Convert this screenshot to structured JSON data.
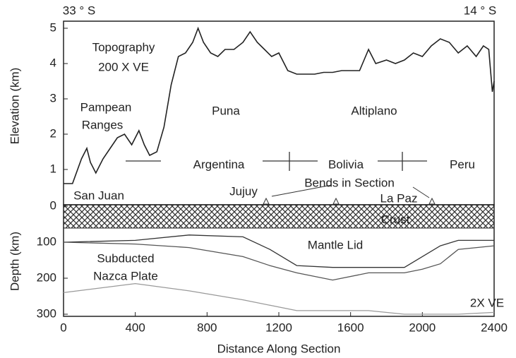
{
  "chart_data": [
    {
      "type": "line",
      "ylabel": "Elevation (km)",
      "xlim": [
        0,
        2400
      ],
      "ylim": [
        0,
        5.2
      ],
      "yticks": [
        1,
        2,
        3,
        4,
        5
      ],
      "annotations": [
        "33 ° S",
        "14 ° S",
        "Topography",
        "200 X VE",
        "Pampean",
        "Ranges",
        "Puna",
        "Altiplano",
        "Argentina",
        "Bolivia",
        "Peru",
        "San Juan",
        "Jujuy",
        "Bends in Section",
        "La Paz"
      ],
      "x": [
        0,
        50,
        100,
        130,
        150,
        180,
        220,
        260,
        300,
        340,
        380,
        420,
        450,
        480,
        520,
        560,
        600,
        640,
        680,
        720,
        750,
        780,
        820,
        860,
        900,
        950,
        1000,
        1040,
        1080,
        1120,
        1160,
        1200,
        1250,
        1300,
        1350,
        1400,
        1450,
        1500,
        1550,
        1600,
        1650,
        1700,
        1740,
        1800,
        1850,
        1900,
        1950,
        2000,
        2050,
        2100,
        2150,
        2200,
        2250,
        2300,
        2340,
        2370,
        2390,
        2400
      ],
      "series": [
        {
          "color": "#222222",
          "values": [
            0.6,
            0.6,
            1.3,
            1.6,
            1.2,
            0.9,
            1.3,
            1.6,
            1.9,
            2.0,
            1.7,
            2.1,
            1.7,
            1.4,
            1.5,
            2.2,
            3.4,
            4.2,
            4.3,
            4.6,
            5.0,
            4.6,
            4.3,
            4.2,
            4.4,
            4.4,
            4.6,
            4.9,
            4.6,
            4.4,
            4.2,
            4.3,
            3.8,
            3.7,
            3.7,
            3.7,
            3.75,
            3.75,
            3.8,
            3.8,
            3.8,
            4.4,
            4.0,
            4.1,
            4.0,
            4.1,
            4.3,
            4.2,
            4.5,
            4.7,
            4.6,
            4.3,
            4.5,
            4.2,
            4.5,
            4.4,
            3.2,
            3.5
          ]
        }
      ]
    },
    {
      "type": "line",
      "xlabel": "Distance Along Section",
      "ylabel": "Depth (km)",
      "xlim": [
        0,
        2400
      ],
      "xticks": [
        0,
        400,
        800,
        1200,
        1600,
        2000,
        2400
      ],
      "ylim": [
        0,
        300
      ],
      "yticks": [
        0,
        100,
        200,
        300
      ],
      "annotations": [
        "Crust",
        "Mantle Lid",
        "Subducted",
        "Nazca Plate",
        "2X VE"
      ],
      "x": [
        0,
        400,
        700,
        1000,
        1150,
        1300,
        1500,
        1700,
        1900,
        2000,
        2100,
        2200,
        2400
      ],
      "series": [
        {
          "color": "#333333",
          "values": [
            100,
            95,
            80,
            85,
            120,
            165,
            170,
            170,
            170,
            140,
            110,
            95,
            95
          ]
        },
        {
          "color": "#555555",
          "values": [
            100,
            105,
            115,
            140,
            165,
            185,
            205,
            185,
            185,
            175,
            160,
            120,
            110
          ]
        },
        {
          "color": "#999999",
          "values": [
            240,
            215,
            235,
            260,
            275,
            290,
            290,
            290,
            300,
            300,
            300,
            300,
            295
          ]
        }
      ]
    }
  ]
}
